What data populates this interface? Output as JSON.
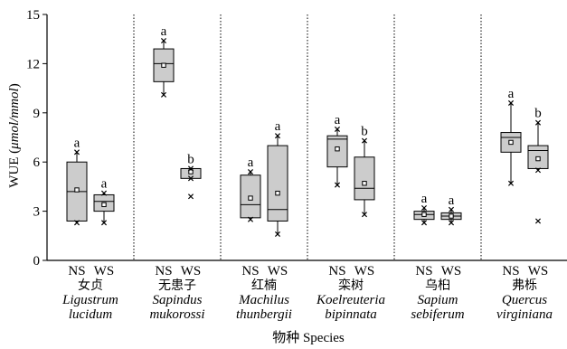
{
  "chart_data": {
    "type": "box",
    "ylabel_prefix": "WUE (",
    "ylabel_unit": "μmol/mmol",
    "ylabel_suffix": ")",
    "xlabel": "物种 Species",
    "ylim": [
      0,
      15
    ],
    "yticks": [
      0,
      3,
      6,
      9,
      12,
      15
    ],
    "treatments": [
      "NS",
      "WS"
    ],
    "species": [
      {
        "cn": "女贞",
        "latin": [
          "Ligustrum",
          "lucidum"
        ],
        "boxes": [
          {
            "min": 2.3,
            "q1": 2.4,
            "median": 4.2,
            "q3": 6.0,
            "max": 6.6,
            "mean": 4.3,
            "outliers": [],
            "letter": "a"
          },
          {
            "min": 2.3,
            "q1": 3.0,
            "median": 3.6,
            "q3": 4.0,
            "max": 4.1,
            "mean": 3.4,
            "outliers": [],
            "letter": "a"
          }
        ]
      },
      {
        "cn": "无患子",
        "latin": [
          "Sapindus",
          "mukorossi"
        ],
        "boxes": [
          {
            "min": 10.1,
            "q1": 10.9,
            "median": 12.0,
            "q3": 12.9,
            "max": 13.4,
            "mean": 11.9,
            "outliers": [],
            "letter": "a"
          },
          {
            "min": 5.0,
            "q1": 5.0,
            "median": 5.6,
            "q3": 5.6,
            "max": 5.6,
            "mean": 5.4,
            "outliers": [
              3.9
            ],
            "letter": "b"
          }
        ]
      },
      {
        "cn": "红楠",
        "latin": [
          "Machilus",
          "thunbergii"
        ],
        "boxes": [
          {
            "min": 2.5,
            "q1": 2.6,
            "median": 3.4,
            "q3": 5.2,
            "max": 5.4,
            "mean": 3.8,
            "outliers": [],
            "letter": "a"
          },
          {
            "min": 1.6,
            "q1": 2.4,
            "median": 3.1,
            "q3": 7.0,
            "max": 7.6,
            "mean": 4.1,
            "outliers": [],
            "letter": "a"
          }
        ]
      },
      {
        "cn": "栾树",
        "latin": [
          "Koelreuteria",
          "bipinnata"
        ],
        "boxes": [
          {
            "min": 4.6,
            "q1": 5.7,
            "median": 7.4,
            "q3": 7.6,
            "max": 8.0,
            "mean": 6.8,
            "outliers": [],
            "letter": "a"
          },
          {
            "min": 2.8,
            "q1": 3.7,
            "median": 4.4,
            "q3": 6.3,
            "max": 7.3,
            "mean": 4.7,
            "outliers": [],
            "letter": "b"
          }
        ]
      },
      {
        "cn": "乌桕",
        "latin": [
          "Sapium",
          "sebiferum"
        ],
        "boxes": [
          {
            "min": 2.3,
            "q1": 2.5,
            "median": 2.8,
            "q3": 3.0,
            "max": 3.2,
            "mean": 2.8,
            "outliers": [],
            "letter": "a"
          },
          {
            "min": 2.3,
            "q1": 2.5,
            "median": 2.7,
            "q3": 2.9,
            "max": 3.1,
            "mean": 2.7,
            "outliers": [],
            "letter": "a"
          }
        ]
      },
      {
        "cn": "弗栎",
        "latin": [
          "Quercus",
          "virginiana"
        ],
        "boxes": [
          {
            "min": 4.7,
            "q1": 6.6,
            "median": 7.5,
            "q3": 7.8,
            "max": 9.6,
            "mean": 7.2,
            "outliers": [],
            "letter": "a"
          },
          {
            "min": 5.5,
            "q1": 5.6,
            "median": 6.7,
            "q3": 7.0,
            "max": 8.4,
            "mean": 6.2,
            "outliers": [
              2.4
            ],
            "letter": "b"
          }
        ]
      }
    ]
  },
  "colors": {
    "box_fill": "#cccccc",
    "stroke": "#000000"
  }
}
